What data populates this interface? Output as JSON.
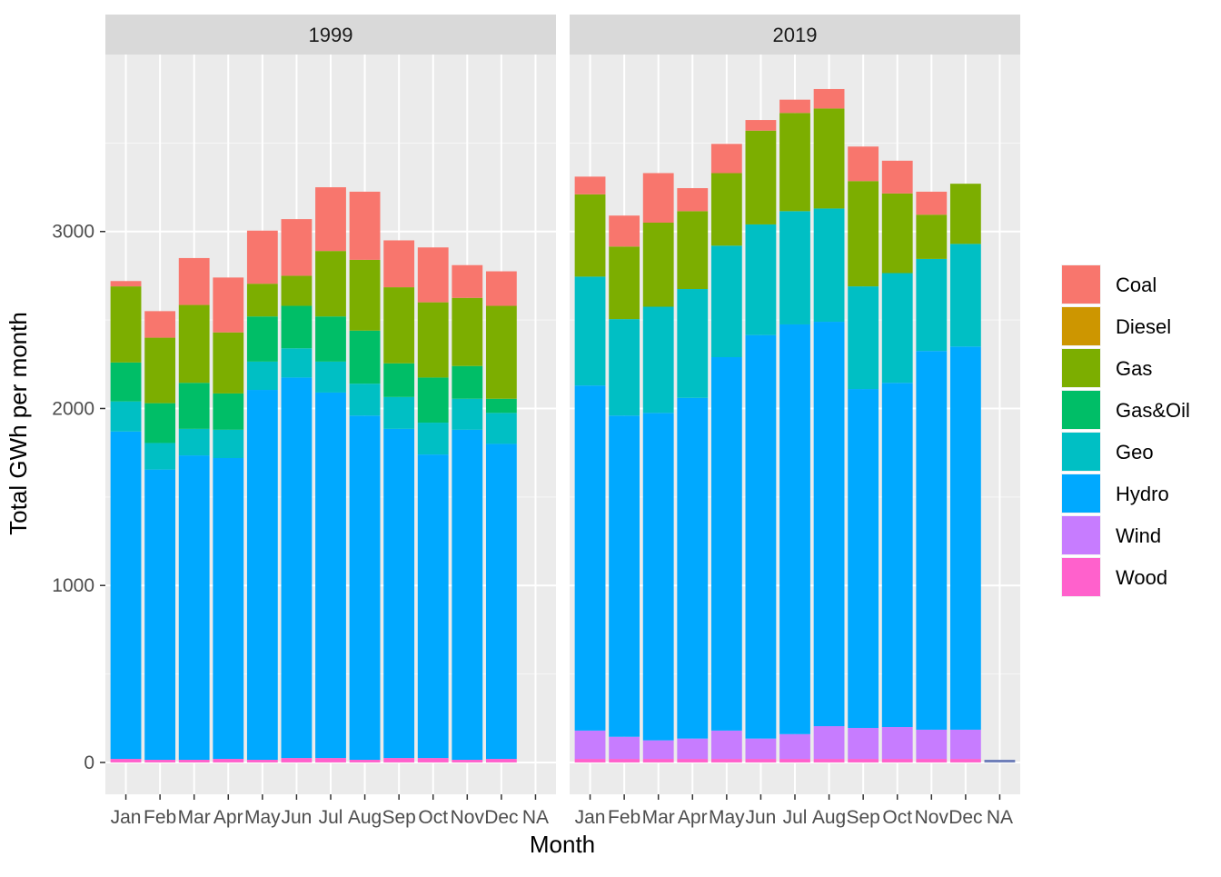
{
  "chart_data": {
    "type": "bar",
    "stacked": true,
    "faceted_by": "year",
    "xlabel": "Month",
    "ylabel": "Total GWh per month",
    "ylim": [
      -180,
      4000
    ],
    "y_ticks": [
      0,
      1000,
      2000,
      3000
    ],
    "grid": true,
    "legend_position": "right",
    "categories": [
      "Jan",
      "Feb",
      "Mar",
      "Apr",
      "May",
      "Jun",
      "Jul",
      "Aug",
      "Sep",
      "Oct",
      "Nov",
      "Dec",
      "NA"
    ],
    "fuels": [
      "Coal",
      "Diesel",
      "Gas",
      "Gas&Oil",
      "Geo",
      "Hydro",
      "Wind",
      "Wood"
    ],
    "colors": {
      "Coal": "#F8766D",
      "Diesel": "#CD9600",
      "Gas": "#7CAE00",
      "Gas&Oil": "#00BE67",
      "Geo": "#00BFC4",
      "Hydro": "#00A9FF",
      "Wind": "#C77CFF",
      "Wood": "#FF61CC",
      "NA": "#6D7DB8"
    },
    "panels": [
      {
        "title": "1999",
        "series": [
          {
            "name": "Wood",
            "values": [
              20,
              15,
              15,
              20,
              15,
              25,
              25,
              15,
              25,
              25,
              15,
              20,
              0
            ]
          },
          {
            "name": "Wind",
            "values": [
              0,
              0,
              0,
              0,
              0,
              0,
              0,
              0,
              0,
              0,
              0,
              0,
              0
            ]
          },
          {
            "name": "Hydro",
            "values": [
              1850,
              1640,
              1720,
              1700,
              2090,
              2150,
              2065,
              1945,
              1860,
              1715,
              1865,
              1780,
              0
            ]
          },
          {
            "name": "Geo",
            "values": [
              170,
              150,
              150,
              160,
              160,
              165,
              175,
              180,
              180,
              180,
              175,
              175,
              0
            ]
          },
          {
            "name": "Gas&Oil",
            "values": [
              220,
              225,
              260,
              205,
              255,
              240,
              255,
              300,
              190,
              255,
              185,
              80,
              0
            ]
          },
          {
            "name": "Gas",
            "values": [
              430,
              370,
              440,
              345,
              185,
              170,
              370,
              400,
              430,
              425,
              385,
              525,
              0
            ]
          },
          {
            "name": "Diesel",
            "values": [
              0,
              0,
              0,
              0,
              0,
              0,
              0,
              0,
              0,
              0,
              0,
              0,
              0
            ]
          },
          {
            "name": "Coal",
            "values": [
              30,
              150,
              265,
              310,
              300,
              320,
              360,
              385,
              265,
              310,
              185,
              195,
              0
            ]
          }
        ]
      },
      {
        "title": "2019",
        "series": [
          {
            "name": "Wood",
            "values": [
              20,
              20,
              20,
              20,
              20,
              20,
              20,
              20,
              20,
              20,
              20,
              20,
              0
            ]
          },
          {
            "name": "Wind",
            "values": [
              160,
              125,
              105,
              115,
              160,
              115,
              140,
              185,
              175,
              180,
              165,
              165,
              0
            ]
          },
          {
            "name": "Hydro",
            "values": [
              1950,
              1815,
              1850,
              1925,
              2110,
              2280,
              2315,
              2285,
              1915,
              1945,
              2140,
              2165,
              15
            ]
          },
          {
            "name": "Geo",
            "values": [
              615,
              545,
              600,
              615,
              630,
              625,
              640,
              640,
              580,
              620,
              520,
              580,
              0
            ]
          },
          {
            "name": "Gas&Oil",
            "values": [
              0,
              0,
              0,
              0,
              0,
              0,
              0,
              0,
              0,
              0,
              0,
              0,
              0
            ]
          },
          {
            "name": "Gas",
            "values": [
              465,
              410,
              475,
              440,
              410,
              530,
              555,
              565,
              595,
              450,
              250,
              340,
              0
            ]
          },
          {
            "name": "Diesel",
            "values": [
              0,
              0,
              0,
              0,
              0,
              0,
              0,
              0,
              0,
              0,
              0,
              0,
              0
            ]
          },
          {
            "name": "Coal",
            "values": [
              100,
              175,
              280,
              130,
              165,
              60,
              75,
              110,
              195,
              185,
              130,
              0,
              0
            ]
          }
        ]
      }
    ]
  }
}
